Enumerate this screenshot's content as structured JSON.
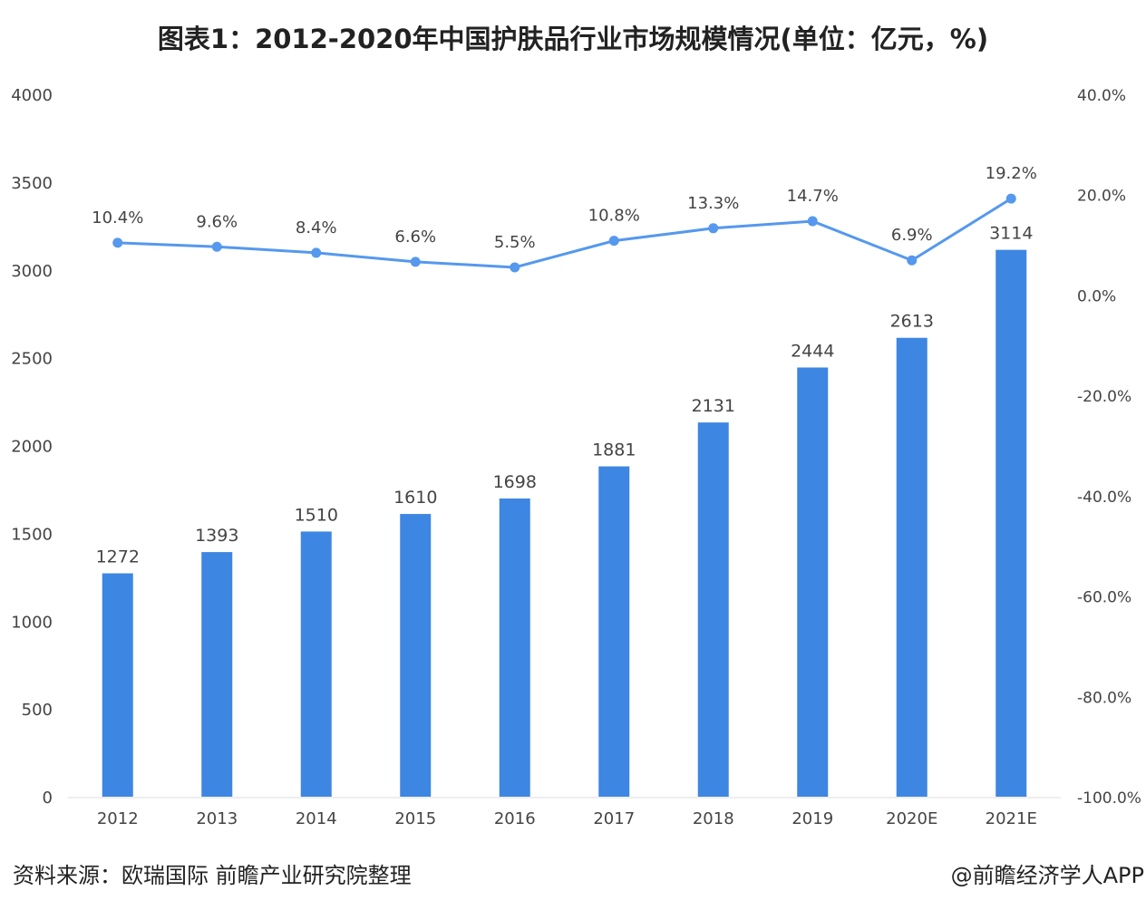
{
  "chart_data": {
    "type": "bar+line",
    "title": "图表1：2012-2020年中国护肤品行业市场规模情况(单位：亿元，%)",
    "categories": [
      "2012",
      "2013",
      "2014",
      "2015",
      "2016",
      "2017",
      "2018",
      "2019",
      "2020E",
      "2021E"
    ],
    "series": [
      {
        "type": "bar",
        "axis": "left",
        "values": [
          1272,
          1393,
          1510,
          1610,
          1698,
          1881,
          2131,
          2444,
          2613,
          3114
        ],
        "color": "#3d86e2"
      },
      {
        "type": "line",
        "axis": "right",
        "values": [
          10.4,
          9.6,
          8.4,
          6.6,
          5.5,
          10.8,
          13.3,
          14.7,
          6.9,
          19.2
        ],
        "labels": [
          "10.4%",
          "9.6%",
          "8.4%",
          "6.6%",
          "5.5%",
          "10.8%",
          "13.3%",
          "14.7%",
          "6.9%",
          "19.2%"
        ],
        "color": "#5598ee"
      }
    ],
    "y_left": {
      "range": [
        0,
        4000
      ],
      "ticks": [
        "0",
        "500",
        "1000",
        "1500",
        "2000",
        "2500",
        "3000",
        "3500",
        "4000"
      ]
    },
    "y_right": {
      "range": [
        -100,
        40
      ],
      "ticks": [
        "-100.0%",
        "-80.0%",
        "-60.0%",
        "-40.0%",
        "-20.0%",
        "0.0%",
        "20.0%",
        "40.0%"
      ]
    },
    "grid": false
  },
  "footer": {
    "source": "资料来源：欧瑞国际 前瞻产业研究院整理",
    "credit": "@前瞻经济学人APP"
  }
}
